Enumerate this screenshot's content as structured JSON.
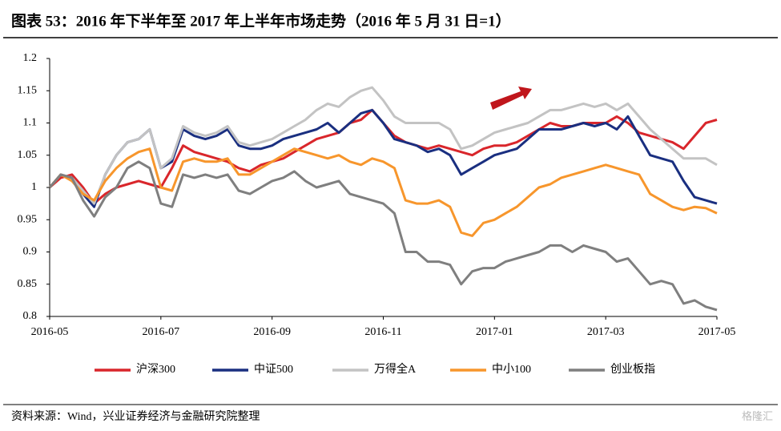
{
  "chart_data": {
    "type": "line",
    "title": "图表 53：2016 年下半年至 2017 年上半年市场走势（2016 年 5 月 31 日=1）",
    "source": "资料来源：Wind，兴业证券经济与金融研究院整理",
    "watermark": "格隆汇",
    "categories": [
      "2016-05",
      null,
      null,
      null,
      null,
      null,
      null,
      null,
      null,
      null,
      "2016-07",
      null,
      null,
      null,
      null,
      null,
      null,
      null,
      null,
      null,
      "2016-09",
      null,
      null,
      null,
      null,
      null,
      null,
      null,
      null,
      null,
      "2016-11",
      null,
      null,
      null,
      null,
      null,
      null,
      null,
      null,
      null,
      "2017-01",
      null,
      null,
      null,
      null,
      null,
      null,
      null,
      null,
      null,
      "2017-03",
      null,
      null,
      null,
      null,
      null,
      null,
      null,
      null,
      null,
      "2017-05"
    ],
    "ylim": [
      0.8,
      1.2
    ],
    "yticks": [
      0.8,
      0.85,
      0.9,
      0.95,
      1,
      1.05,
      1.1,
      1.15,
      1.2
    ],
    "grid": false,
    "legend": "bottom",
    "series": [
      {
        "name": "沪深300",
        "color": "#d9262b",
        "values": [
          1.0,
          1.015,
          1.02,
          1.0,
          0.975,
          0.99,
          1.0,
          1.005,
          1.01,
          1.005,
          1.0,
          1.03,
          1.065,
          1.055,
          1.05,
          1.045,
          1.04,
          1.03,
          1.025,
          1.035,
          1.04,
          1.045,
          1.055,
          1.065,
          1.075,
          1.08,
          1.085,
          1.1,
          1.105,
          1.12,
          1.1,
          1.08,
          1.07,
          1.065,
          1.06,
          1.065,
          1.06,
          1.055,
          1.05,
          1.06,
          1.065,
          1.065,
          1.07,
          1.08,
          1.09,
          1.1,
          1.095,
          1.095,
          1.1,
          1.1,
          1.1,
          1.11,
          1.1,
          1.085,
          1.08,
          1.075,
          1.07,
          1.06,
          1.08,
          1.1,
          1.105
        ]
      },
      {
        "name": "中证500",
        "color": "#1a2f80",
        "values": [
          1.0,
          1.02,
          1.015,
          0.99,
          0.97,
          1.02,
          1.05,
          1.07,
          1.075,
          1.09,
          1.03,
          1.04,
          1.09,
          1.08,
          1.075,
          1.08,
          1.09,
          1.065,
          1.06,
          1.06,
          1.065,
          1.075,
          1.08,
          1.085,
          1.09,
          1.1,
          1.085,
          1.1,
          1.115,
          1.12,
          1.1,
          1.075,
          1.07,
          1.065,
          1.055,
          1.06,
          1.05,
          1.02,
          1.03,
          1.04,
          1.05,
          1.055,
          1.06,
          1.075,
          1.09,
          1.09,
          1.09,
          1.095,
          1.1,
          1.095,
          1.1,
          1.09,
          1.11,
          1.08,
          1.05,
          1.045,
          1.04,
          1.01,
          0.985,
          0.98,
          0.975
        ]
      },
      {
        "name": "万得全A",
        "color": "#c3c3c3",
        "values": [
          1.0,
          1.02,
          1.015,
          0.995,
          0.975,
          1.02,
          1.05,
          1.07,
          1.075,
          1.09,
          1.03,
          1.045,
          1.095,
          1.085,
          1.08,
          1.085,
          1.095,
          1.07,
          1.065,
          1.07,
          1.075,
          1.085,
          1.095,
          1.105,
          1.12,
          1.13,
          1.125,
          1.14,
          1.15,
          1.155,
          1.135,
          1.11,
          1.1,
          1.1,
          1.1,
          1.1,
          1.09,
          1.06,
          1.065,
          1.075,
          1.085,
          1.09,
          1.095,
          1.1,
          1.11,
          1.12,
          1.12,
          1.125,
          1.13,
          1.125,
          1.13,
          1.12,
          1.13,
          1.11,
          1.09,
          1.075,
          1.06,
          1.045,
          1.045,
          1.045,
          1.035
        ]
      },
      {
        "name": "中小100",
        "color": "#f7962c",
        "values": [
          1.0,
          1.02,
          1.01,
          0.99,
          0.98,
          1.01,
          1.03,
          1.045,
          1.055,
          1.06,
          1.0,
          0.995,
          1.04,
          1.045,
          1.04,
          1.04,
          1.045,
          1.02,
          1.02,
          1.03,
          1.04,
          1.05,
          1.06,
          1.055,
          1.05,
          1.045,
          1.05,
          1.04,
          1.035,
          1.045,
          1.04,
          1.03,
          0.98,
          0.975,
          0.975,
          0.98,
          0.97,
          0.93,
          0.925,
          0.945,
          0.95,
          0.96,
          0.97,
          0.985,
          1.0,
          1.005,
          1.015,
          1.02,
          1.025,
          1.03,
          1.035,
          1.03,
          1.025,
          1.02,
          0.99,
          0.98,
          0.97,
          0.965,
          0.97,
          0.968,
          0.96
        ]
      },
      {
        "name": "创业板指",
        "color": "#7f7f7f",
        "values": [
          1.0,
          1.02,
          1.015,
          0.98,
          0.955,
          0.985,
          1.0,
          1.03,
          1.04,
          1.03,
          0.975,
          0.97,
          1.02,
          1.015,
          1.02,
          1.015,
          1.02,
          0.995,
          0.99,
          1.0,
          1.01,
          1.015,
          1.025,
          1.01,
          1.0,
          1.005,
          1.01,
          0.99,
          0.985,
          0.98,
          0.975,
          0.96,
          0.9,
          0.9,
          0.885,
          0.885,
          0.88,
          0.85,
          0.87,
          0.875,
          0.875,
          0.885,
          0.89,
          0.895,
          0.9,
          0.91,
          0.91,
          0.9,
          0.91,
          0.905,
          0.9,
          0.885,
          0.89,
          0.87,
          0.85,
          0.855,
          0.85,
          0.82,
          0.825,
          0.815,
          0.81
        ]
      }
    ]
  }
}
